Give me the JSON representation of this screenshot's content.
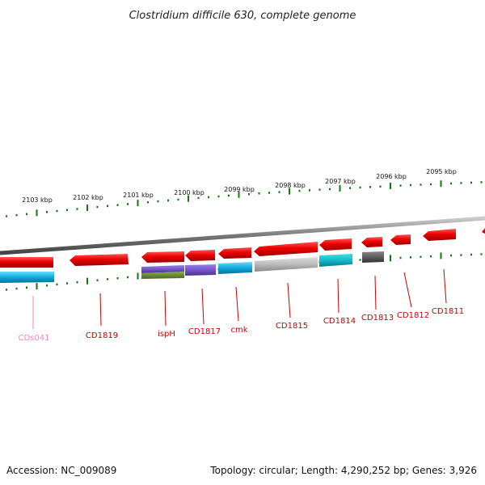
{
  "title": "Clostridium difficile 630, complete genome",
  "footer": {
    "accession": "Accession: NC_009089",
    "summary": "Topology: circular; Length: 4,290,252 bp; Genes: 3,926"
  },
  "scale_labels": [
    "2103 kbp",
    "2102 kbp",
    "2101 kbp",
    "2100 kbp",
    "2099 kbp",
    "2098 kbp",
    "2097 kbp",
    "2096 kbp",
    "2095 kbp"
  ],
  "gene_labels": [
    {
      "text": "CDs041",
      "color": "#ee88bb"
    },
    {
      "text": "CD1819",
      "color": "#cc0000"
    },
    {
      "text": "ispH",
      "color": "#cc0000"
    },
    {
      "text": "CD1817",
      "color": "#cc0000"
    },
    {
      "text": "cmk",
      "color": "#cc0000"
    },
    {
      "text": "CD1815",
      "color": "#cc0000"
    },
    {
      "text": "CD1814",
      "color": "#cc0000"
    },
    {
      "text": "CD1813",
      "color": "#cc0000"
    },
    {
      "text": "CD1812",
      "color": "#cc0000"
    },
    {
      "text": "CD1811",
      "color": "#cc0000"
    }
  ],
  "colors": {
    "gene": "#ee0000",
    "tick": "#117711",
    "backbone": "#888888",
    "cyan": "#11aadd",
    "purple": "#7755cc",
    "olive": "#668833",
    "grey": "#bbbbbb",
    "teal": "#11bbcc",
    "dark": "#555555"
  }
}
